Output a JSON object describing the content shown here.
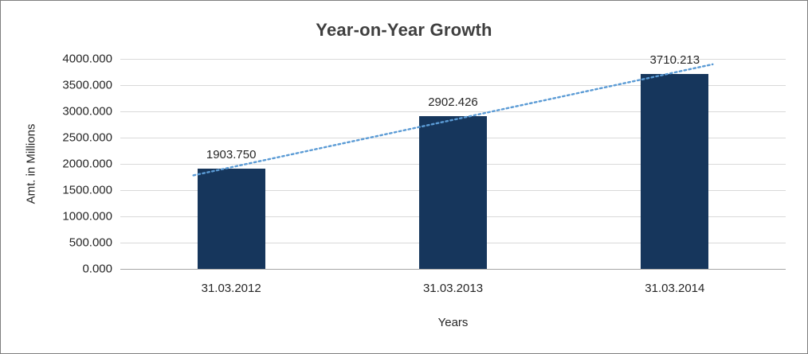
{
  "chart_data": {
    "type": "bar",
    "title": "Year-on-Year Growth",
    "categories": [
      "31.03.2012",
      "31.03.2013",
      "31.03.2014"
    ],
    "values": [
      1903.75,
      2902.426,
      3710.213
    ],
    "value_labels": [
      "1903.750",
      "2902.426",
      "3710.213"
    ],
    "xlabel": "Years",
    "ylabel": "Amt. in Millions",
    "ylim": [
      0,
      4000
    ],
    "ytick_step": 500,
    "ytick_labels": [
      "0.000",
      "500.000",
      "1000.000",
      "1500.000",
      "2000.000",
      "2500.000",
      "3000.000",
      "3500.000",
      "4000.000"
    ],
    "grid": true,
    "legend": false,
    "trendline": true,
    "colors": {
      "bar": "#16365C",
      "trendline": "#5B9BD5",
      "gridline": "#D9D9D9",
      "axis": "#A6A6A6",
      "text": "#262626",
      "title": "#3F3F3F"
    }
  }
}
